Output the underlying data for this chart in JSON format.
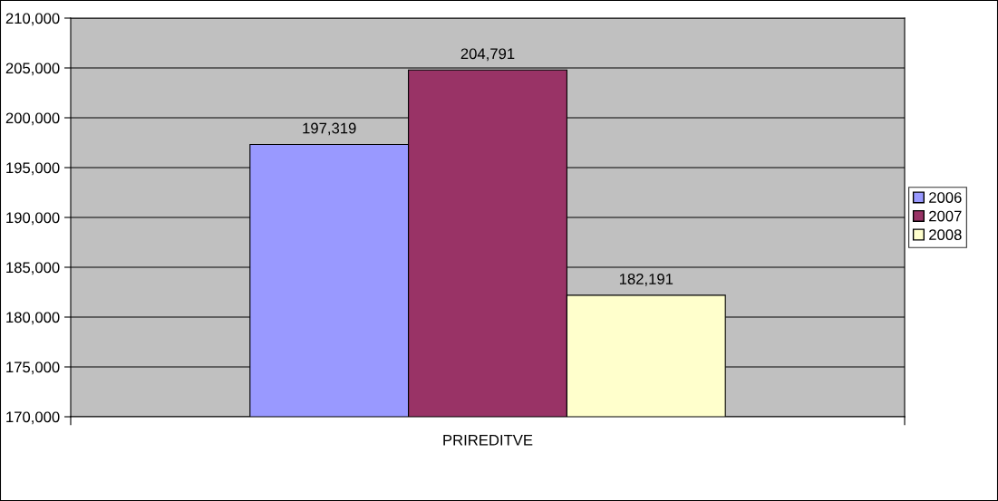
{
  "chart_data": {
    "type": "bar",
    "categories": [
      "PRIREDITVE"
    ],
    "series": [
      {
        "name": "2006",
        "color": "#9999ff",
        "values": [
          197319
        ],
        "value_labels": [
          "197,319"
        ]
      },
      {
        "name": "2007",
        "color": "#993366",
        "values": [
          204791
        ],
        "value_labels": [
          "204,791"
        ]
      },
      {
        "name": "2008",
        "color": "#ffffcc",
        "values": [
          182191
        ],
        "value_labels": [
          "182,191"
        ]
      }
    ],
    "ylim": [
      170000,
      210000
    ],
    "yticks": [
      {
        "value": 170000,
        "label": "170,000"
      },
      {
        "value": 175000,
        "label": "175,000"
      },
      {
        "value": 180000,
        "label": "180,000"
      },
      {
        "value": 185000,
        "label": "185,000"
      },
      {
        "value": 190000,
        "label": "190,000"
      },
      {
        "value": 195000,
        "label": "195,000"
      },
      {
        "value": 200000,
        "label": "200,000"
      },
      {
        "value": 205000,
        "label": "205,000"
      },
      {
        "value": 210000,
        "label": "210,000"
      }
    ],
    "grid": "y",
    "legend": "right"
  }
}
